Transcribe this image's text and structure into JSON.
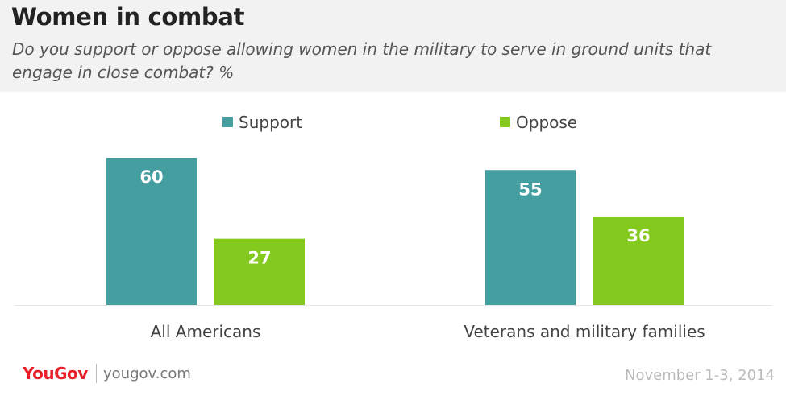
{
  "header": {
    "title": "Women in combat",
    "subtitle": "Do you support or oppose allowing women in the military to serve in ground units that engage in close combat? %"
  },
  "footer": {
    "logo": "YouGov",
    "url": "yougov.com",
    "date": "November 1-3, 2014"
  },
  "colors": {
    "support": "#459e9f",
    "oppose": "#84c91e",
    "header_bg": "#f2f2f2"
  },
  "chart_data": {
    "type": "bar",
    "categories": [
      "All Americans",
      "Veterans and military families"
    ],
    "series": [
      {
        "name": "Support",
        "values": [
          60,
          55
        ]
      },
      {
        "name": "Oppose",
        "values": [
          27,
          36
        ]
      }
    ],
    "title": "Women in combat",
    "ylim": [
      0,
      70
    ],
    "grid": false,
    "legend_position": "top-center",
    "data_labels": true
  }
}
